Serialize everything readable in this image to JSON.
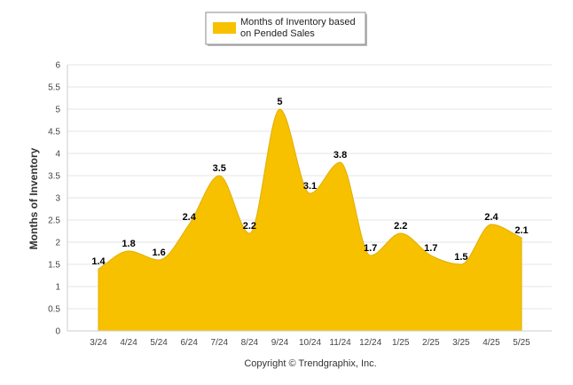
{
  "chart_data": {
    "type": "area",
    "title": "",
    "categories": [
      "3/24",
      "4/24",
      "5/24",
      "6/24",
      "7/24",
      "8/24",
      "9/24",
      "10/24",
      "11/24",
      "12/24",
      "1/25",
      "2/25",
      "3/25",
      "4/25",
      "5/25"
    ],
    "series": [
      {
        "name": "Months of Inventory based on Pended Sales",
        "values": [
          1.4,
          1.8,
          1.6,
          2.4,
          3.5,
          2.2,
          5,
          3.1,
          3.8,
          1.7,
          2.2,
          1.7,
          1.5,
          2.4,
          2.1
        ],
        "color": "#F7C100"
      }
    ],
    "legend_lines": [
      "Months of Inventory based",
      "on Pended Sales"
    ],
    "legend_position": "top-center",
    "ylabel": "Months of Inventory",
    "xlabel": "",
    "ylim": [
      0,
      6
    ],
    "yticks": [
      "0",
      "0.5",
      "1",
      "1.5",
      "2",
      "2.5",
      "3",
      "3.5",
      "4",
      "4.5",
      "5",
      "5.5",
      "6"
    ],
    "grid": true
  },
  "footer": {
    "copyright": "Copyright © Trendgraphix, Inc."
  }
}
